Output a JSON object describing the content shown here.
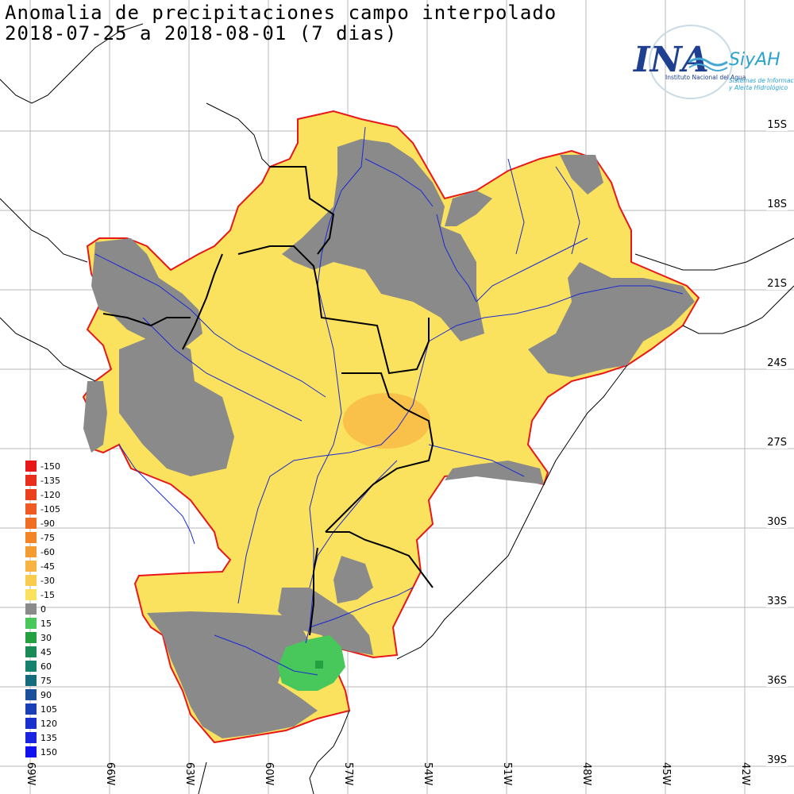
{
  "title_line1": "Anomalia de precipitaciones campo interpolado",
  "title_line2": "2018-07-25 a 2018-08-01 (7 dias)",
  "logo": {
    "main": "INA",
    "brand": "SiyAH",
    "subtitle": "Instituto Nacional del Agua",
    "tagline1": "Sistemas de Información",
    "tagline2": "y Alerta Hidrológico"
  },
  "lat_labels": [
    "15S",
    "18S",
    "21S",
    "24S",
    "27S",
    "30S",
    "33S",
    "36S",
    "39S"
  ],
  "lon_labels": [
    "69W",
    "66W",
    "63W",
    "60W",
    "57W",
    "54W",
    "51W",
    "48W",
    "45W",
    "42W"
  ],
  "legend": [
    {
      "label": "-150",
      "color": "#e8181a"
    },
    {
      "label": "-135",
      "color": "#ea2e1c"
    },
    {
      "label": "-120",
      "color": "#ec401d"
    },
    {
      "label": "-105",
      "color": "#ef5a20"
    },
    {
      "label": "-90",
      "color": "#f06e22"
    },
    {
      "label": "-75",
      "color": "#f38526"
    },
    {
      "label": "-60",
      "color": "#f59c30"
    },
    {
      "label": "-45",
      "color": "#f7b442"
    },
    {
      "label": "-30",
      "color": "#f9cc4e"
    },
    {
      "label": "-15",
      "color": "#fbe25e"
    },
    {
      "label": "0",
      "color": "#8a8a8a"
    },
    {
      "label": "15",
      "color": "#48c75a"
    },
    {
      "label": "30",
      "color": "#24a040"
    },
    {
      "label": "45",
      "color": "#1a8a56"
    },
    {
      "label": "60",
      "color": "#15826e"
    },
    {
      "label": "75",
      "color": "#156b7c"
    },
    {
      "label": "90",
      "color": "#1a4f9c"
    },
    {
      "label": "105",
      "color": "#1a3fb6"
    },
    {
      "label": "120",
      "color": "#1a30cc"
    },
    {
      "label": "135",
      "color": "#1a24e0"
    },
    {
      "label": "150",
      "color": "#1010f0"
    }
  ]
}
